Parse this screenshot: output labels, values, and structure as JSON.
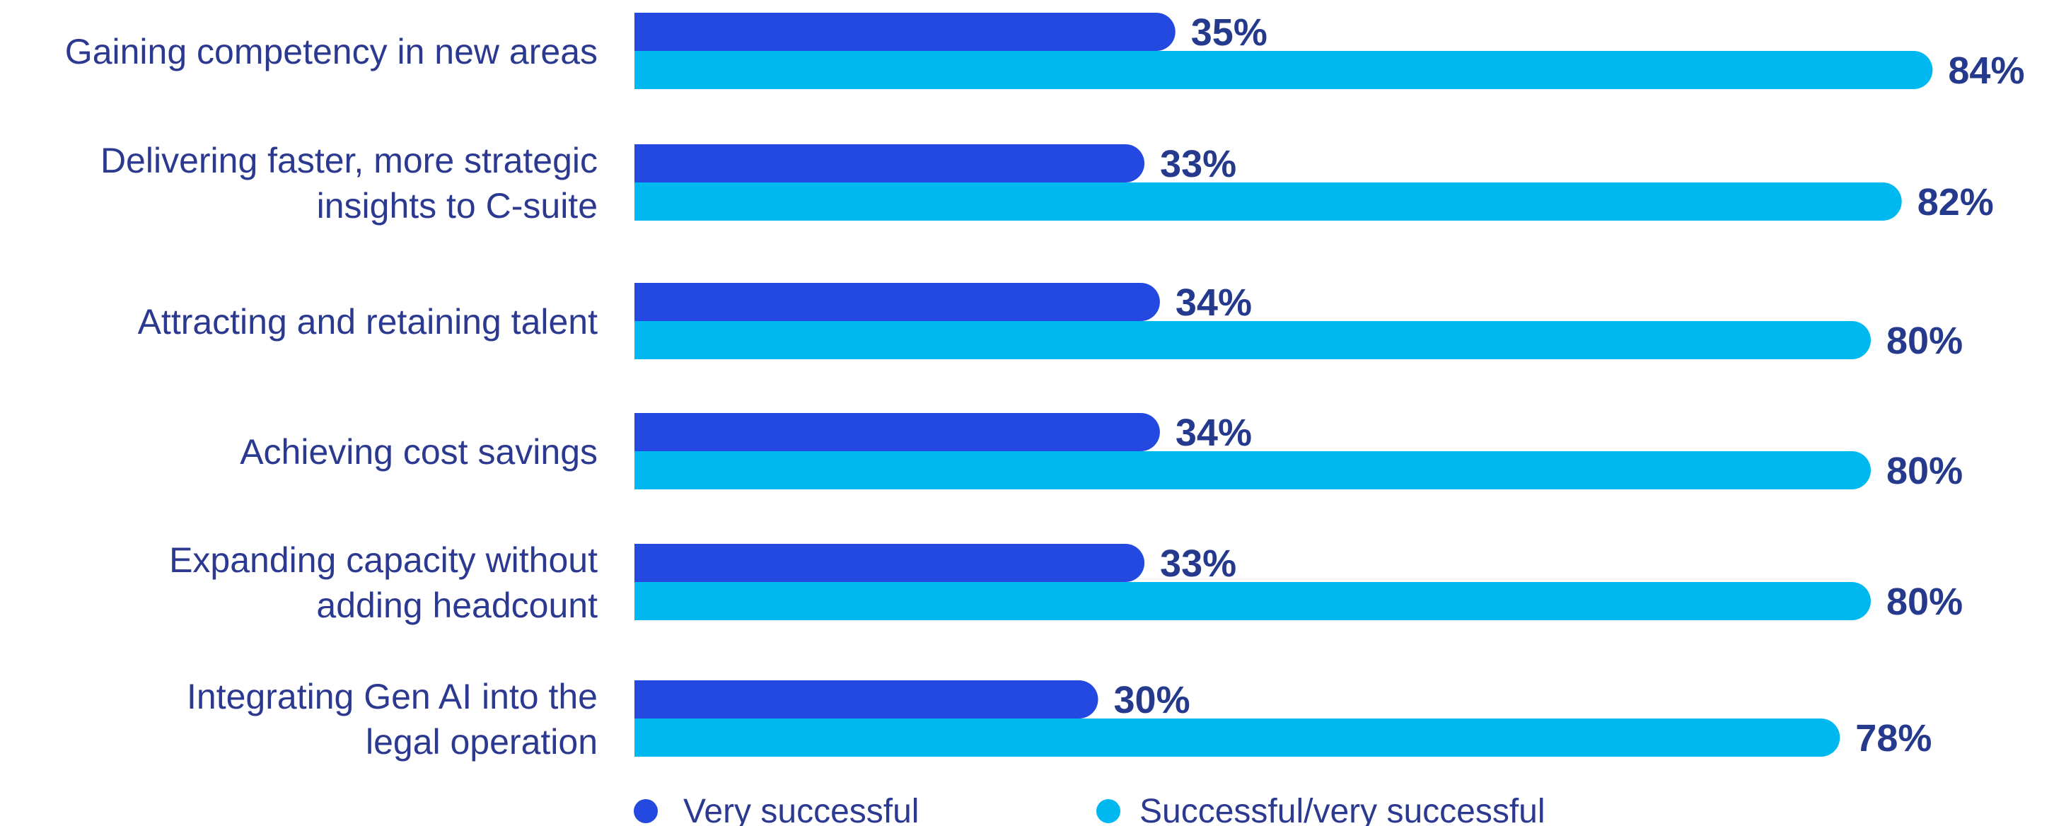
{
  "chart_data": {
    "type": "bar",
    "orientation": "horizontal",
    "categories": [
      "Gaining competency in new areas",
      "Delivering faster, more strategic insights to C-suite",
      "Attracting and retaining talent",
      "Achieving cost savings",
      "Expanding capacity without adding headcount",
      "Integrating Gen AI into the legal operation"
    ],
    "category_lines": [
      [
        "Gaining competency in new areas"
      ],
      [
        "Delivering faster, more strategic",
        "insights to C-suite"
      ],
      [
        "Attracting and retaining talent"
      ],
      [
        "Achieving cost savings"
      ],
      [
        "Expanding capacity without",
        "adding headcount"
      ],
      [
        "Integrating Gen AI into the",
        "legal operation"
      ]
    ],
    "series": [
      {
        "name": "Very successful",
        "color": "#2349e0",
        "values": [
          35,
          33,
          34,
          34,
          33,
          30
        ],
        "labels": [
          "35%",
          "33%",
          "34%",
          "34%",
          "33%",
          "30%"
        ]
      },
      {
        "name": "Successful/very successful",
        "color": "#00b8f0",
        "values": [
          84,
          82,
          80,
          80,
          80,
          78
        ],
        "labels": [
          "84%",
          "82%",
          "80%",
          "80%",
          "80%",
          "78%"
        ]
      }
    ],
    "value_unit": "%",
    "xlim": [
      0,
      100
    ],
    "grid": false,
    "legend_position": "bottom",
    "value_label_color": "#253a8c",
    "category_label_color": "#2b3990"
  }
}
